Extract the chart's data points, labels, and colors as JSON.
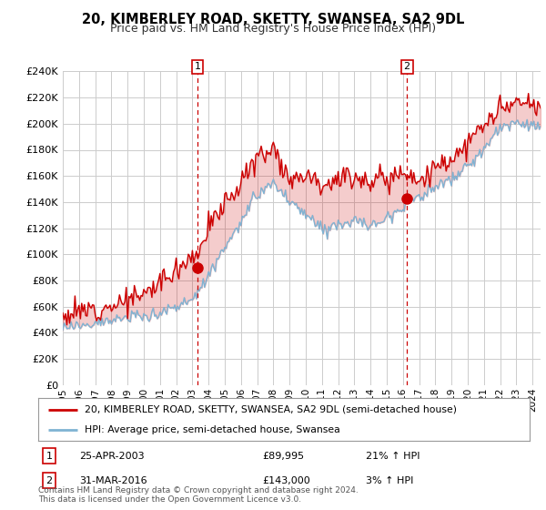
{
  "title": "20, KIMBERLEY ROAD, SKETTY, SWANSEA, SA2 9DL",
  "subtitle": "Price paid vs. HM Land Registry's House Price Index (HPI)",
  "legend_label_red": "20, KIMBERLEY ROAD, SKETTY, SWANSEA, SA2 9DL (semi-detached house)",
  "legend_label_blue": "HPI: Average price, semi-detached house, Swansea",
  "annotation1_date": "25-APR-2003",
  "annotation1_price": "£89,995",
  "annotation1_hpi": "21% ↑ HPI",
  "annotation2_date": "31-MAR-2016",
  "annotation2_price": "£143,000",
  "annotation2_hpi": "3% ↑ HPI",
  "footer": "Contains HM Land Registry data © Crown copyright and database right 2024.\nThis data is licensed under the Open Government Licence v3.0.",
  "ylim": [
    0,
    240000
  ],
  "yticks": [
    0,
    20000,
    40000,
    60000,
    80000,
    100000,
    120000,
    140000,
    160000,
    180000,
    200000,
    220000,
    240000
  ],
  "sale1_x": 2003.32,
  "sale1_y": 89995,
  "sale2_x": 2016.25,
  "sale2_y": 143000,
  "background_color": "#ffffff",
  "grid_color": "#cccccc",
  "red_color": "#cc0000",
  "blue_color": "#7fb3d3",
  "xlim_start": 1995,
  "xlim_end": 2024.5
}
